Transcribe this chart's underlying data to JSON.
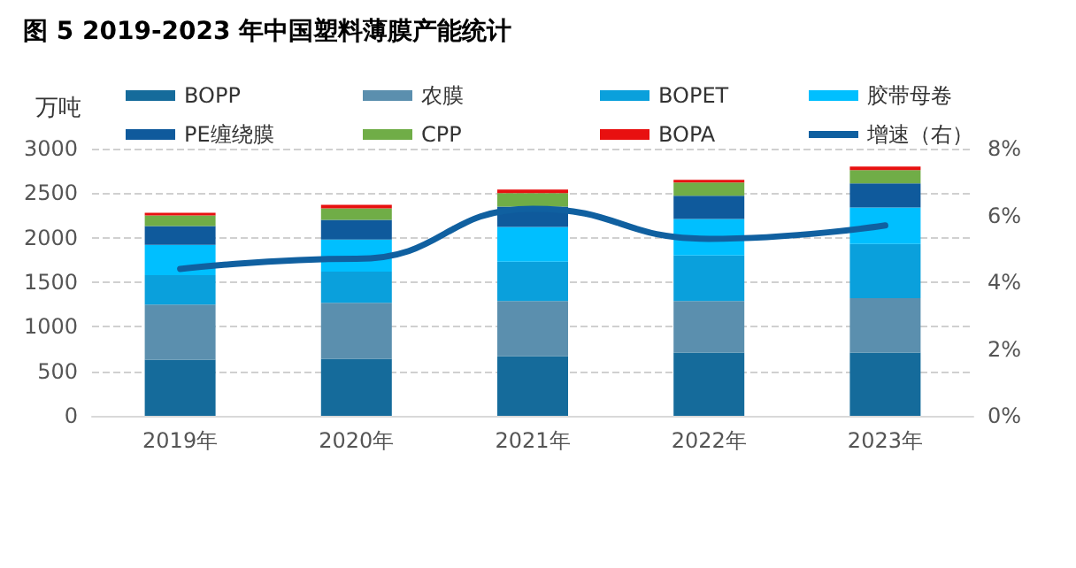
{
  "chart_data": {
    "type": "bar",
    "title": "图 5 2019-2023 年中国塑料薄膜产能统计",
    "ylabel": "万吨",
    "categories": [
      "2019年",
      "2020年",
      "2021年",
      "2022年",
      "2023年"
    ],
    "stacked": true,
    "grid": "y",
    "legend": "top",
    "marker": "none",
    "line_style": "solid",
    "ylim": [
      0,
      3000
    ],
    "yticks": [
      0,
      500,
      1000,
      1500,
      2000,
      2500,
      3000
    ],
    "y2lim": [
      0,
      8
    ],
    "y2ticks": [
      {
        "value": 0,
        "label": "0%"
      },
      {
        "value": 2,
        "label": "2%"
      },
      {
        "value": 4,
        "label": "4%"
      },
      {
        "value": 6,
        "label": "6%"
      },
      {
        "value": 8,
        "label": "8%"
      }
    ],
    "series": [
      {
        "name": "BOPP",
        "color": "#156b9b",
        "values": [
          630,
          640,
          670,
          710,
          710
        ]
      },
      {
        "name": "农膜",
        "color": "#5b8fae",
        "values": [
          620,
          630,
          620,
          580,
          610
        ]
      },
      {
        "name": "BOPET",
        "color": "#0aa0dc",
        "values": [
          330,
          350,
          440,
          510,
          610
        ]
      },
      {
        "name": "胶带母卷",
        "color": "#00bfff",
        "values": [
          340,
          360,
          390,
          410,
          410
        ]
      },
      {
        "name": "PE缠绕膜",
        "color": "#0f5a9c",
        "values": [
          210,
          220,
          230,
          260,
          270
        ]
      },
      {
        "name": "CPP",
        "color": "#70ad47",
        "values": [
          120,
          130,
          150,
          150,
          150
        ]
      },
      {
        "name": "BOPA",
        "color": "#e81010",
        "values": [
          30,
          40,
          40,
          30,
          40
        ]
      },
      {
        "name": "增速（右）",
        "type": "line",
        "axis": "y2",
        "color": "#1060a0",
        "values": [
          4.4,
          4.7,
          6.2,
          5.3,
          5.7
        ]
      }
    ]
  }
}
